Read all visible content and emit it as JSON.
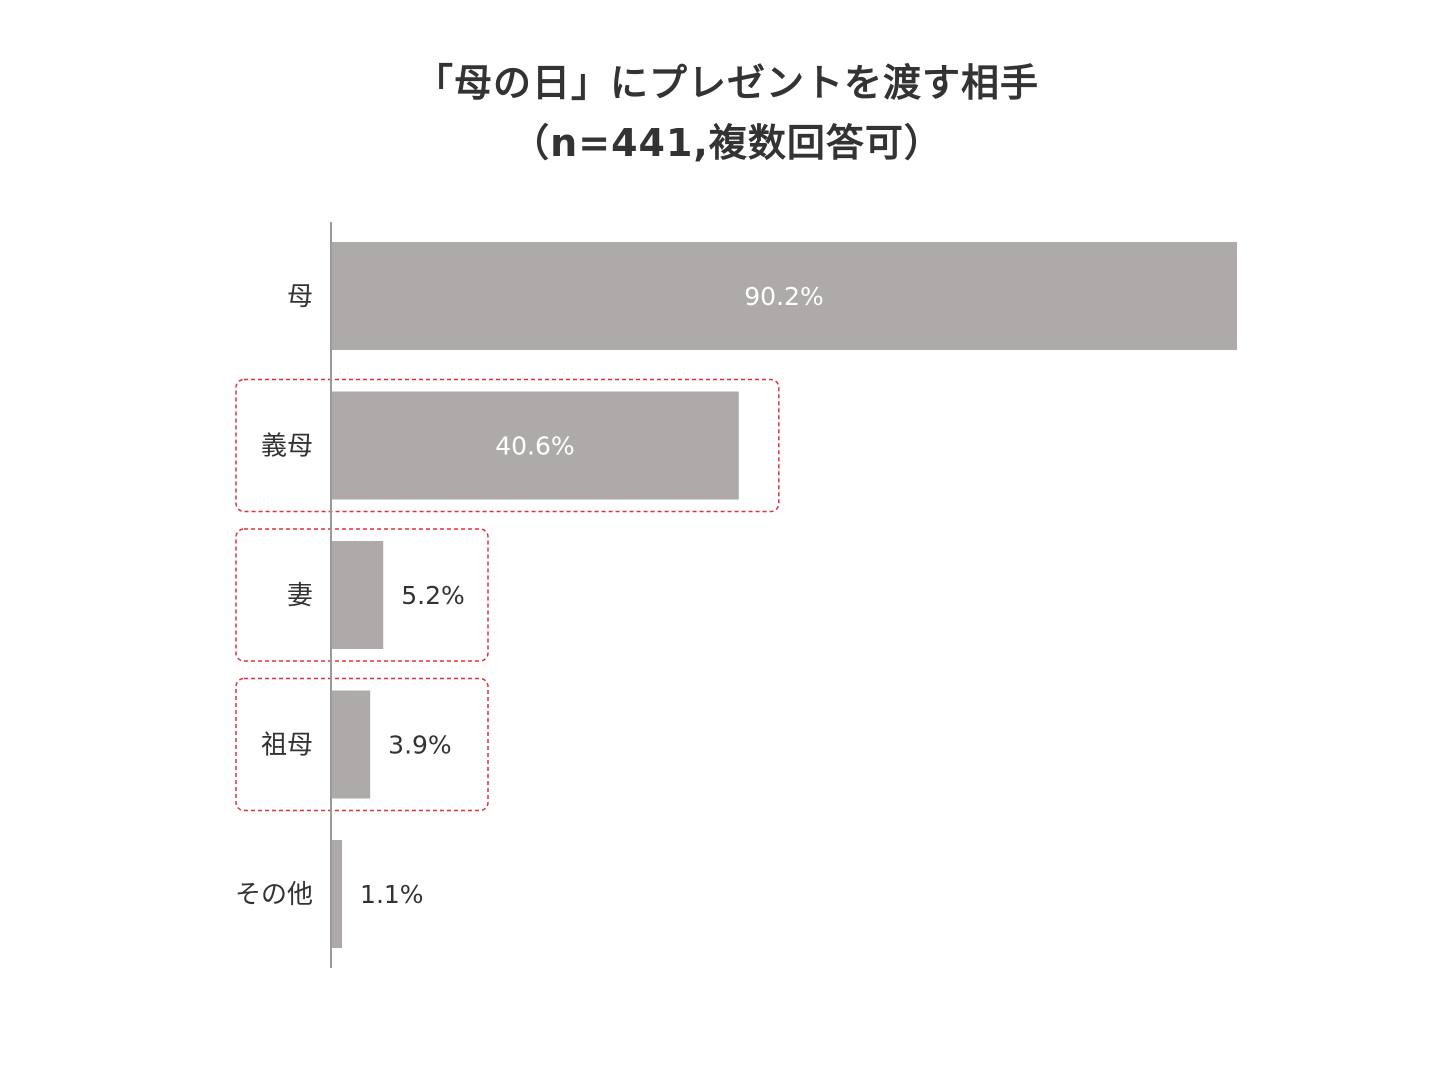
{
  "chart_data": {
    "type": "bar",
    "orientation": "horizontal",
    "title": "「母の日」にプレゼントを渡す相手",
    "subtitle": "（n=441,複数回答可）",
    "categories": [
      "母",
      "義母",
      "妻",
      "祖母",
      "その他"
    ],
    "values": [
      90.2,
      40.6,
      5.2,
      3.9,
      1.1
    ],
    "value_labels": [
      "90.2%",
      "40.6%",
      "5.2%",
      "3.9%",
      "1.1%"
    ],
    "unit": "%",
    "xlim": [
      0,
      100
    ],
    "grid": false,
    "highlighted_categories": [
      "義母",
      "妻",
      "祖母"
    ],
    "colors": {
      "bar": "#aeaaa9",
      "axis": "#9a9a9a",
      "highlight_box": "#e0313a",
      "label_inside": "#ffffff",
      "label_outside": "#333333"
    }
  }
}
